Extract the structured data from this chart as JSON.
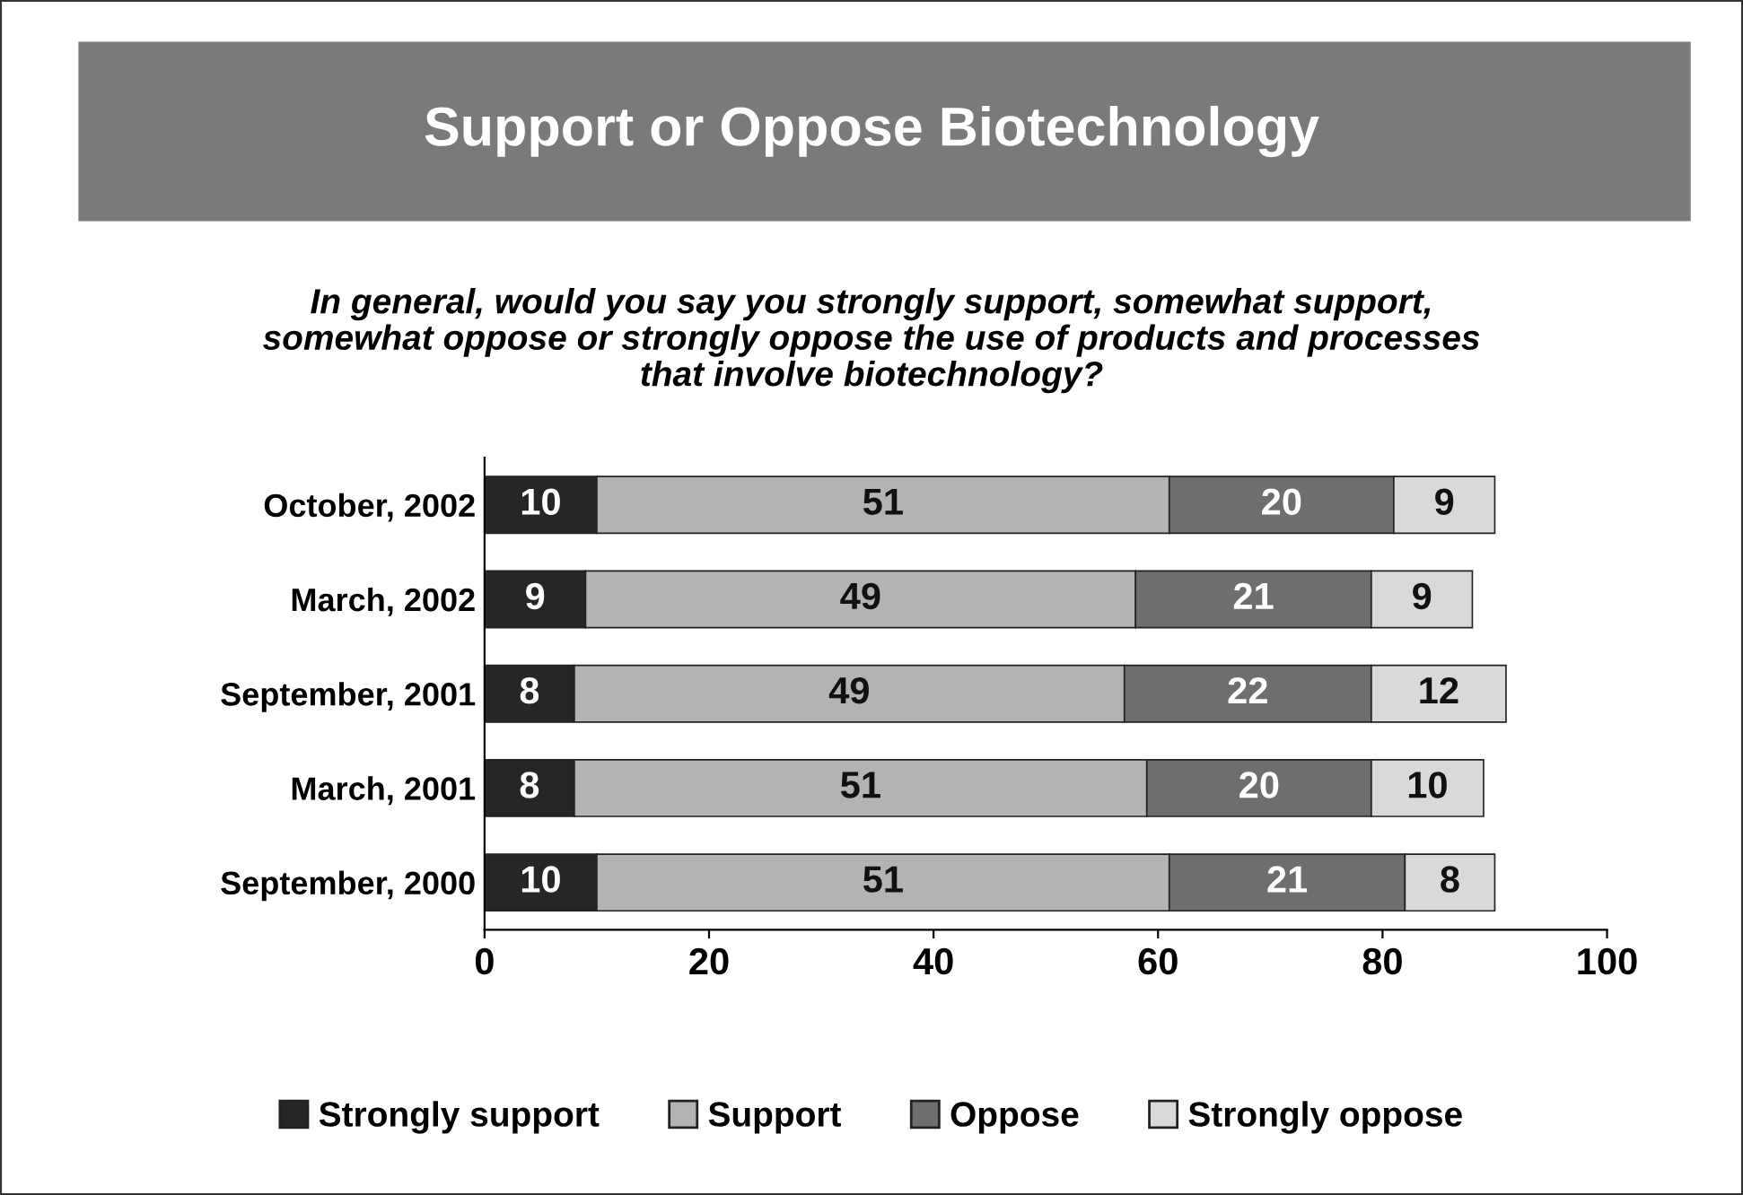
{
  "chart_data": {
    "type": "bar",
    "orientation": "horizontal",
    "stacked": true,
    "title": "Support or Oppose Biotechnology",
    "subtitle": "In general, would you say you strongly support, somewhat support,\nsomewhat oppose or strongly oppose the use of products and processes\nthat involve biotechnology?",
    "categories": [
      "October, 2002",
      "March, 2002",
      "September, 2001",
      "March, 2001",
      "September, 2000"
    ],
    "series": [
      {
        "name": "Strongly support",
        "color": "#262626",
        "values": [
          10,
          9,
          8,
          8,
          10
        ]
      },
      {
        "name": "Support",
        "color": "#b3b3b3",
        "values": [
          51,
          49,
          49,
          51,
          51
        ]
      },
      {
        "name": "Oppose",
        "color": "#6e6e6e",
        "values": [
          20,
          21,
          22,
          20,
          21
        ]
      },
      {
        "name": "Strongly oppose",
        "color": "#d9d9d9",
        "values": [
          9,
          9,
          12,
          10,
          8
        ]
      }
    ],
    "xlim": [
      0,
      100
    ],
    "xticks": [
      0,
      20,
      40,
      60,
      80,
      100
    ],
    "data_labels": true,
    "legend": "bottom",
    "grid": false
  }
}
